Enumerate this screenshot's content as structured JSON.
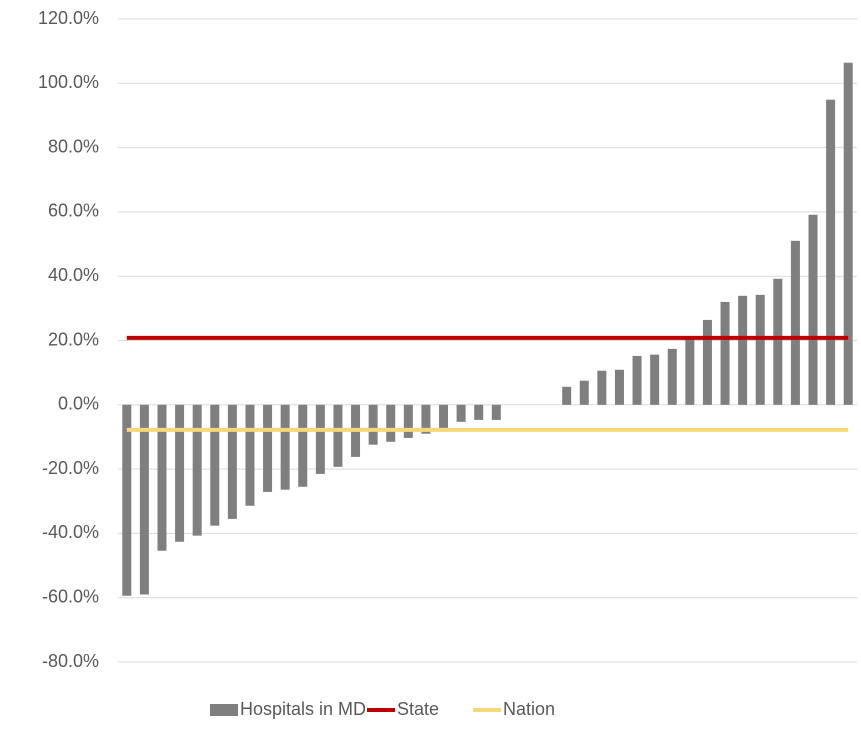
{
  "chart_data": {
    "type": "bar",
    "categories": [
      null,
      null,
      null,
      null,
      null,
      null,
      null,
      null,
      null,
      null,
      null,
      null,
      null,
      null,
      null,
      null,
      null,
      null,
      null,
      null,
      null,
      null,
      null,
      null,
      null,
      null,
      null,
      null,
      null,
      null,
      null,
      null,
      null,
      null,
      null,
      null,
      null,
      null,
      null,
      null,
      null,
      null
    ],
    "series": [
      {
        "name": "Hospitals in MD",
        "type": "bar",
        "color": "#7f7f7f",
        "values": [
          -59.4,
          -59.0,
          -45.4,
          -42.6,
          -40.7,
          -37.6,
          -35.5,
          -31.4,
          -27.1,
          -26.4,
          -25.5,
          -21.5,
          -19.3,
          -16.2,
          -12.4,
          -11.5,
          -10.3,
          -9.0,
          -7.2,
          -5.3,
          -4.7,
          -4.7,
          null,
          null,
          null,
          5.6,
          7.5,
          10.6,
          10.9,
          15.2,
          15.6,
          17.4,
          20.5,
          26.4,
          32.0,
          33.9,
          34.2,
          39.2,
          51.0,
          59.1,
          94.9,
          106.4
        ]
      },
      {
        "name": "State",
        "type": "line",
        "color": "#c00000",
        "values": [
          20.8,
          20.8,
          20.8,
          20.8,
          20.8,
          20.8,
          20.8,
          20.8,
          20.8,
          20.8,
          20.8,
          20.8,
          20.8,
          20.8,
          20.8,
          20.8,
          20.8,
          20.8,
          20.8,
          20.8,
          20.8,
          20.8,
          20.8,
          20.8,
          20.8,
          20.8,
          20.8,
          20.8,
          20.8,
          20.8,
          20.8,
          20.8,
          20.8,
          20.8,
          20.8,
          20.8,
          20.8,
          20.8,
          20.8,
          20.8,
          20.8,
          20.8
        ]
      },
      {
        "name": "Nation",
        "type": "line",
        "color": "#f6d77a",
        "values": [
          -7.8,
          -7.8,
          -7.8,
          -7.8,
          -7.8,
          -7.8,
          -7.8,
          -7.8,
          -7.8,
          -7.8,
          -7.8,
          -7.8,
          -7.8,
          -7.8,
          -7.8,
          -7.8,
          -7.8,
          -7.8,
          -7.8,
          -7.8,
          -7.8,
          -7.8,
          -7.8,
          -7.8,
          -7.8,
          -7.8,
          -7.8,
          -7.8,
          -7.8,
          -7.8,
          -7.8,
          -7.8,
          -7.8,
          -7.8,
          -7.8,
          -7.8,
          -7.8,
          -7.8,
          -7.8,
          -7.8,
          -7.8,
          -7.8
        ]
      }
    ],
    "ylim": [
      -80,
      120
    ],
    "yticks": [
      {
        "value": -80,
        "label": "-80.0%"
      },
      {
        "value": -60,
        "label": "-60.0%"
      },
      {
        "value": -40,
        "label": "-40.0%"
      },
      {
        "value": -20,
        "label": "-20.0%"
      },
      {
        "value": 0,
        "label": "0.0%"
      },
      {
        "value": 20,
        "label": "20.0%"
      },
      {
        "value": 40,
        "label": "40.0%"
      },
      {
        "value": 60,
        "label": "60.0%"
      },
      {
        "value": 80,
        "label": "80.0%"
      },
      {
        "value": 100,
        "label": "100.0%"
      },
      {
        "value": 120,
        "label": "120.0%"
      }
    ],
    "grid": true,
    "legend": "bottom"
  }
}
